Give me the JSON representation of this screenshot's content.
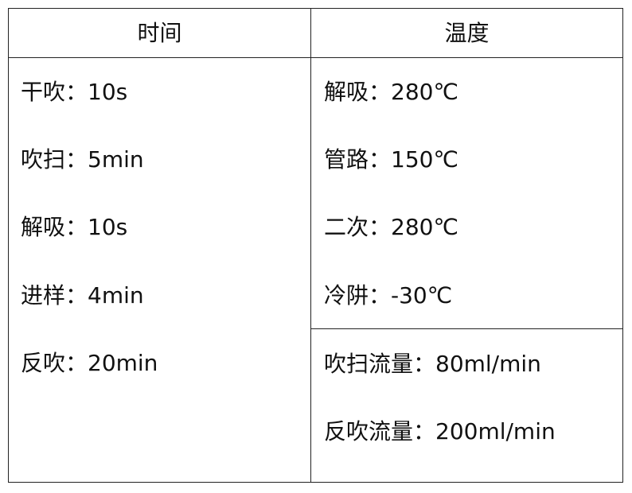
{
  "headers": [
    "时间",
    "温度"
  ],
  "time_items": [
    "干吹：10s",
    "吹扫：5min",
    "解吸：10s",
    "进样：4min",
    "反吹：20min"
  ],
  "temp_items": [
    "解吸：280℃",
    "管路：150℃",
    "二次：280℃",
    "冷阱：-30℃"
  ],
  "flow_items": [
    "吹扫流量：80ml/min",
    "反吹流量：200ml/min"
  ]
}
